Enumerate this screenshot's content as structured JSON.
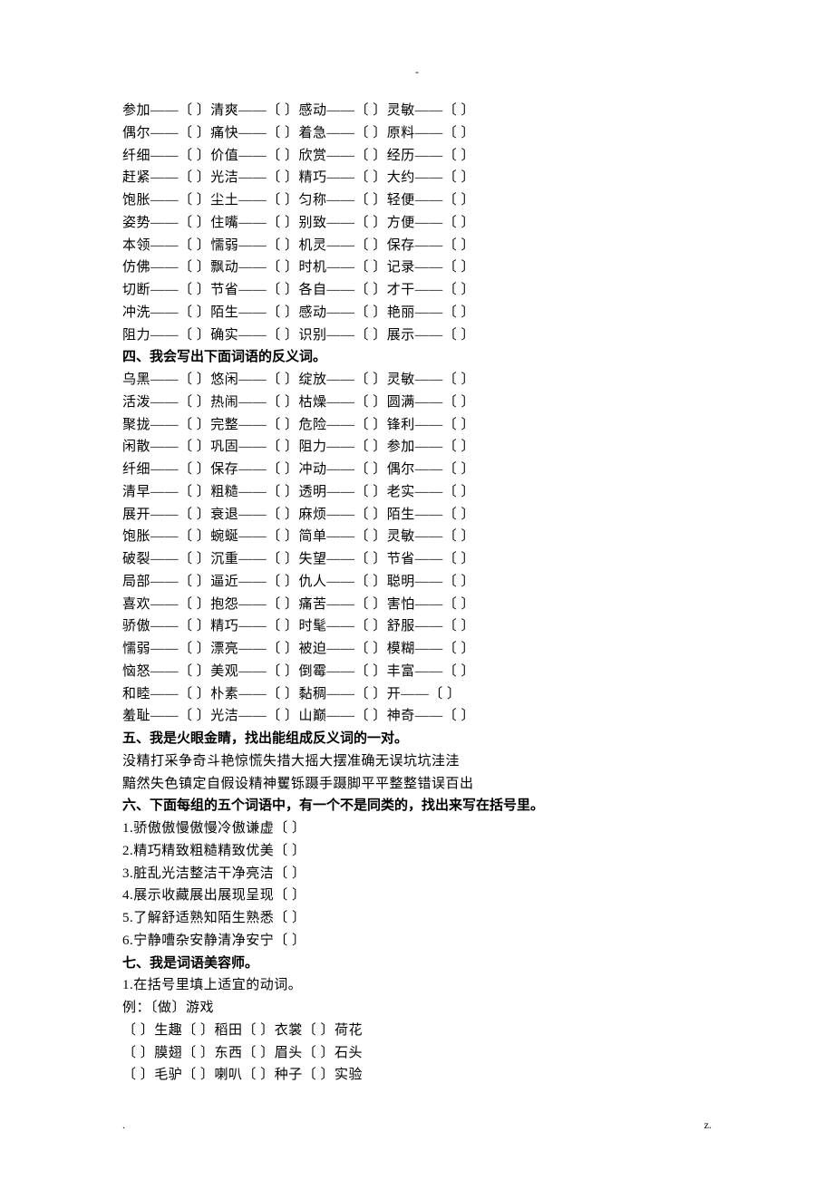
{
  "marks": {
    "top": "-",
    "bottomLeft": ".",
    "bottomRight": "z."
  },
  "bracket_open": "〔 〕",
  "sep": "——",
  "section3_rows": [
    [
      "参加",
      "清爽",
      "感动",
      "灵敏"
    ],
    [
      "偶尔",
      "痛快",
      "着急",
      "原料"
    ],
    [
      "纤细",
      "价值",
      "欣赏",
      "经历"
    ],
    [
      "赶紧",
      "光洁",
      "精巧",
      "大约"
    ],
    [
      "饱胀",
      "尘土",
      "匀称",
      "轻便"
    ],
    [
      "姿势",
      "住嘴",
      "别致",
      "方便"
    ],
    [
      "本领",
      "懦弱",
      "机灵",
      "保存"
    ],
    [
      "仿佛",
      "飘动",
      "时机",
      "记录"
    ],
    [
      "切断",
      "节省",
      "各自",
      "才干"
    ],
    [
      "冲洗",
      "陌生",
      "感动",
      "艳丽"
    ],
    [
      "阻力",
      "确实",
      "识别",
      "展示"
    ]
  ],
  "section4_title": "四、我会写出下面词语的反义词。",
  "section4_rows": [
    [
      "乌黑",
      "悠闲",
      "绽放",
      "灵敏"
    ],
    [
      "活泼",
      "热闹",
      "枯燥",
      "圆满"
    ],
    [
      "聚拢",
      "完整",
      "危险",
      "锋利"
    ],
    [
      "闲散",
      "巩固",
      "阻力",
      "参加"
    ],
    [
      "纤细",
      "保存",
      "冲动",
      "偶尔"
    ],
    [
      "清早",
      "粗糙",
      "透明",
      "老实"
    ],
    [
      "展开",
      "衰退",
      "麻烦",
      "陌生"
    ],
    [
      "饱胀",
      "蜿蜒",
      "简单",
      "灵敏"
    ],
    [
      "破裂",
      "沉重",
      "失望",
      "节省"
    ],
    [
      "局部",
      "逼近",
      "仇人",
      "聪明"
    ],
    [
      "喜欢",
      "抱怨",
      "痛苦",
      "害怕"
    ],
    [
      "骄傲",
      "精巧",
      "时髦",
      "舒服"
    ],
    [
      "懦弱",
      "漂亮",
      "被迫",
      "模糊"
    ],
    [
      "恼怒",
      "美观",
      "倒霉",
      "丰富"
    ],
    [
      "和睦",
      "朴素",
      "黏稠",
      "开"
    ],
    [
      "羞耻",
      "光洁",
      "山巅",
      "神奇"
    ]
  ],
  "section5_title": "五、我是火眼金睛，找出能组成反义词的一对。",
  "section5_lines": [
    "没精打采争奇斗艳惊慌失措大摇大摆准确无误坑坑洼洼",
    "黯然失色镇定自假设精神矍铄蹑手蹑脚平平整整错误百出"
  ],
  "section6_title": "六、下面每组的五个词语中，有一个不是同类的，找出来写在括号里。",
  "section6_items": [
    "1.骄傲傲慢傲慢冷傲谦虚〔 〕",
    "2.精巧精致粗糙精致优美〔 〕",
    "3.脏乱光洁整洁干净亮洁〔 〕",
    "4.展示收藏展出展现呈现〔 〕",
    "5.了解舒适熟知陌生熟悉〔 〕",
    "6.宁静嘈杂安静清净安宁〔 〕"
  ],
  "section7_title": "七、我是词语美容师。",
  "section7_sub": "1.在括号里填上适宜的动词。",
  "section7_example": "例：〔做〕游戏",
  "section7_rows": [
    [
      "生趣",
      "稻田",
      "衣裳",
      "荷花"
    ],
    [
      "膜翅",
      "东西",
      "眉头",
      "石头"
    ],
    [
      "毛驴",
      "喇叭",
      "种子",
      "实验"
    ]
  ]
}
